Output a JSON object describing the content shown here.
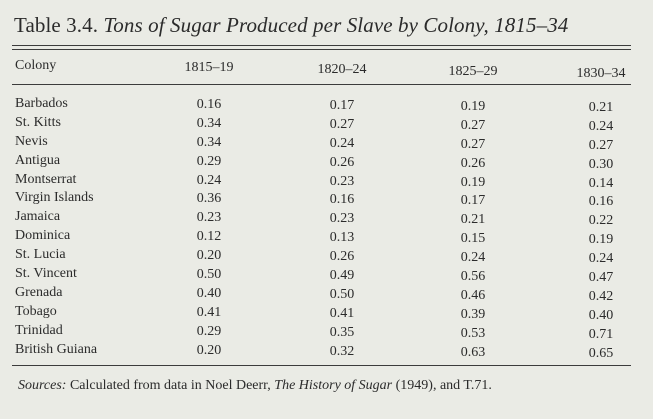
{
  "table": {
    "label": "Table 3.4.",
    "caption": "Tons of Sugar Produced per Slave by Colony, 1815–34",
    "headers": {
      "colony": "Colony",
      "periods": [
        "1815–19",
        "1820–24",
        "1825–29",
        "1830–34"
      ]
    },
    "rows": [
      {
        "colony": "Barbados",
        "values": [
          "0.16",
          "0.17",
          "0.19",
          "0.21"
        ]
      },
      {
        "colony": "St. Kitts",
        "values": [
          "0.34",
          "0.27",
          "0.27",
          "0.24"
        ]
      },
      {
        "colony": "Nevis",
        "values": [
          "0.34",
          "0.24",
          "0.27",
          "0.27"
        ]
      },
      {
        "colony": "Antigua",
        "values": [
          "0.29",
          "0.26",
          "0.26",
          "0.30"
        ]
      },
      {
        "colony": "Montserrat",
        "values": [
          "0.24",
          "0.23",
          "0.19",
          "0.14"
        ]
      },
      {
        "colony": "Virgin Islands",
        "values": [
          "0.36",
          "0.16",
          "0.17",
          "0.16"
        ]
      },
      {
        "colony": "Jamaica",
        "values": [
          "0.23",
          "0.23",
          "0.21",
          "0.22"
        ]
      },
      {
        "colony": "Dominica",
        "values": [
          "0.12",
          "0.13",
          "0.15",
          "0.19"
        ]
      },
      {
        "colony": "St. Lucia",
        "values": [
          "0.20",
          "0.26",
          "0.24",
          "0.24"
        ]
      },
      {
        "colony": "St. Vincent",
        "values": [
          "0.50",
          "0.49",
          "0.56",
          "0.47"
        ]
      },
      {
        "colony": "Grenada",
        "values": [
          "0.40",
          "0.50",
          "0.46",
          "0.42"
        ]
      },
      {
        "colony": "Tobago",
        "values": [
          "0.41",
          "0.41",
          "0.39",
          "0.40"
        ]
      },
      {
        "colony": "Trinidad",
        "values": [
          "0.29",
          "0.35",
          "0.53",
          "0.71"
        ]
      },
      {
        "colony": "British Guiana",
        "values": [
          "0.20",
          "0.32",
          "0.63",
          "0.65"
        ]
      }
    ]
  },
  "sources": {
    "label": "Sources:",
    "text_before": " Calculated from data in Noel Deerr, ",
    "book_title": "The History of Sugar",
    "text_after": " (1949), and T.71."
  }
}
